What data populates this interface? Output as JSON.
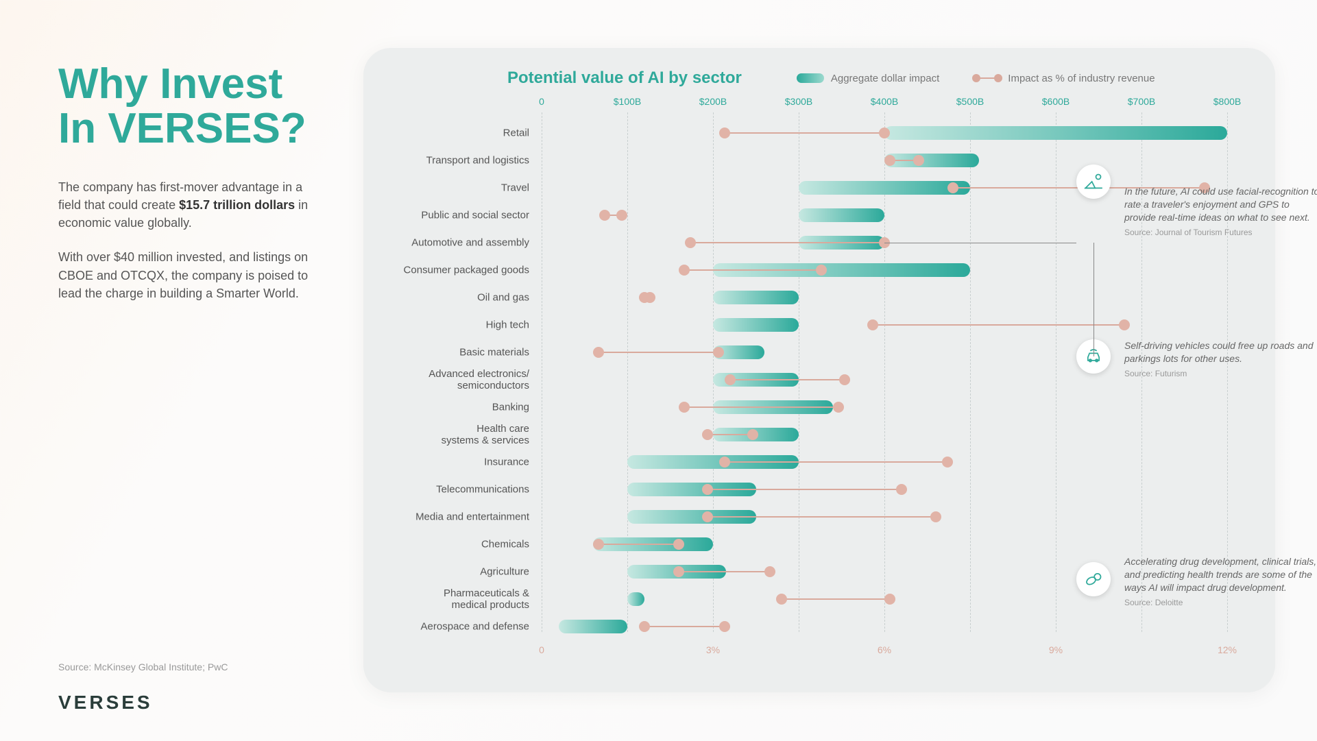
{
  "title": "Why Invest In VERSES?",
  "para1_a": "The company has first-mover advantage in a field that could create ",
  "para1_bold": "$15.7 trillion dollars",
  "para1_b": " in economic value globally.",
  "para2": "With over $40 million invested, and listings on CBOE and OTCQX, the company is poised to lead the charge in building a Smarter World.",
  "bottom_source": "Source: McKinsey Global Institute; PwC",
  "logo": "VERSES",
  "chart": {
    "title": "Potential value of AI by sector",
    "legend_dollar": "Aggregate dollar impact",
    "legend_pct": "Impact as % of industry revenue",
    "dollar_max": 800,
    "dollar_ticks": [
      0,
      100,
      200,
      300,
      400,
      500,
      600,
      700,
      800
    ],
    "dollar_tick_labels": [
      "0",
      "$100B",
      "$200B",
      "$300B",
      "$400B",
      "$500B",
      "$600B",
      "$700B",
      "$800B"
    ],
    "pct_max": 12,
    "pct_ticks": [
      0,
      3,
      6,
      9,
      12
    ],
    "pct_tick_labels": [
      "0",
      "3%",
      "6%",
      "9%",
      "12%"
    ],
    "bar_gradient_start": "#c6e8e1",
    "bar_gradient_end": "#2ba99a",
    "pct_color": "#d9a99c",
    "grid_color": "#c8cfcf",
    "background": "#eceeee",
    "rows": [
      {
        "label": "Retail",
        "dollar_lo": 400,
        "dollar_hi": 800,
        "pct_lo": 3.2,
        "pct_hi": 6.0
      },
      {
        "label": "Transport and logistics",
        "dollar_lo": 400,
        "dollar_hi": 510,
        "pct_lo": 6.1,
        "pct_hi": 6.6
      },
      {
        "label": "Travel",
        "dollar_lo": 300,
        "dollar_hi": 500,
        "pct_lo": 7.2,
        "pct_hi": 11.6
      },
      {
        "label": "Public and social sector",
        "dollar_lo": 300,
        "dollar_hi": 400,
        "pct_lo": 1.1,
        "pct_hi": 1.4
      },
      {
        "label": "Automotive and assembly",
        "dollar_lo": 300,
        "dollar_hi": 400,
        "pct_lo": 2.6,
        "pct_hi": 6.0
      },
      {
        "label": "Consumer packaged goods",
        "dollar_lo": 200,
        "dollar_hi": 500,
        "pct_lo": 2.5,
        "pct_hi": 4.9
      },
      {
        "label": "Oil and gas",
        "dollar_lo": 200,
        "dollar_hi": 300,
        "pct_lo": 1.8,
        "pct_hi": 1.9
      },
      {
        "label": "High tech",
        "dollar_lo": 200,
        "dollar_hi": 300,
        "pct_lo": 5.8,
        "pct_hi": 10.2
      },
      {
        "label": "Basic materials",
        "dollar_lo": 200,
        "dollar_hi": 260,
        "pct_lo": 1.0,
        "pct_hi": 3.1
      },
      {
        "label": "Advanced electronics/\nsemiconductors",
        "dollar_lo": 200,
        "dollar_hi": 300,
        "pct_lo": 3.3,
        "pct_hi": 5.3
      },
      {
        "label": "Banking",
        "dollar_lo": 200,
        "dollar_hi": 340,
        "pct_lo": 2.5,
        "pct_hi": 5.2
      },
      {
        "label": "Health care\nsystems & services",
        "dollar_lo": 200,
        "dollar_hi": 300,
        "pct_lo": 2.9,
        "pct_hi": 3.7
      },
      {
        "label": "Insurance",
        "dollar_lo": 100,
        "dollar_hi": 300,
        "pct_lo": 3.2,
        "pct_hi": 7.1
      },
      {
        "label": "Telecommunications",
        "dollar_lo": 100,
        "dollar_hi": 250,
        "pct_lo": 2.9,
        "pct_hi": 6.3
      },
      {
        "label": "Media and entertainment",
        "dollar_lo": 100,
        "dollar_hi": 250,
        "pct_lo": 2.9,
        "pct_hi": 6.9
      },
      {
        "label": "Chemicals",
        "dollar_lo": 60,
        "dollar_hi": 200,
        "pct_lo": 1.0,
        "pct_hi": 2.4
      },
      {
        "label": "Agriculture",
        "dollar_lo": 100,
        "dollar_hi": 215,
        "pct_lo": 2.4,
        "pct_hi": 4.0
      },
      {
        "label": "Pharmaceuticals &\nmedical products",
        "dollar_lo": 100,
        "dollar_hi": 120,
        "pct_lo": 4.2,
        "pct_hi": 6.1
      },
      {
        "label": "Aerospace and defense",
        "dollar_lo": 20,
        "dollar_hi": 100,
        "pct_lo": 1.8,
        "pct_hi": 3.2
      }
    ]
  },
  "callouts": [
    {
      "icon": "travel",
      "text": "In the future, AI could use facial-recognition to rate a traveler's enjoyment and GPS to provide real-time ideas on what to see next.",
      "src": "Source: Journal of Tourism Futures"
    },
    {
      "icon": "car",
      "text": "Self-driving vehicles could free up roads and parkings lots for other uses.",
      "src": "Source: Futurism"
    },
    {
      "icon": "pill",
      "text": "Accelerating drug development, clinical trials, and predicting health trends are some of the ways AI will impact drug development.",
      "src": "Source: Deloitte"
    }
  ]
}
